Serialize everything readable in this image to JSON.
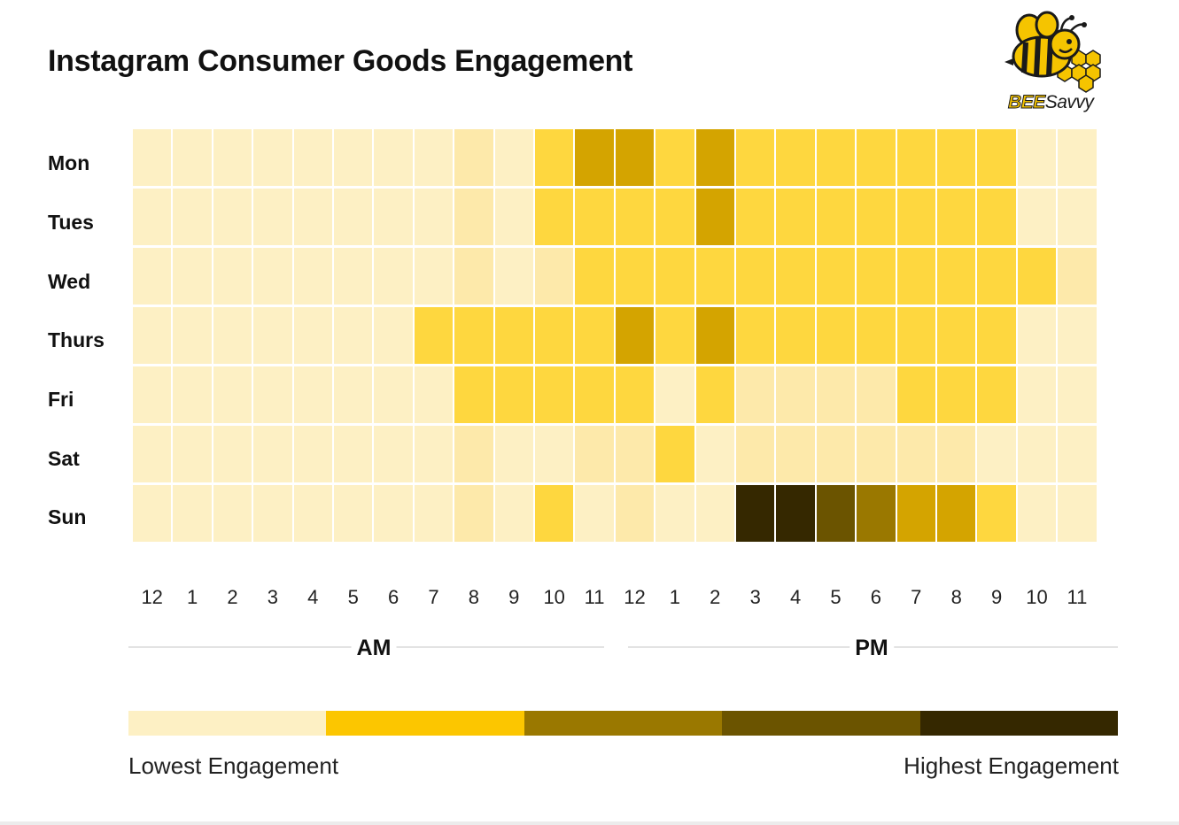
{
  "title": "Instagram Consumer Goods Engagement",
  "logo": {
    "brand_bold": "BEE",
    "brand_rest": "Savvy"
  },
  "chart_data": {
    "type": "heatmap",
    "title": "Instagram Consumer Goods Engagement",
    "rows": [
      "Mon",
      "Tues",
      "Wed",
      "Thurs",
      "Fri",
      "Sat",
      "Sun"
    ],
    "columns": [
      "12",
      "1",
      "2",
      "3",
      "4",
      "5",
      "6",
      "7",
      "8",
      "9",
      "10",
      "11",
      "12",
      "1",
      "2",
      "3",
      "4",
      "5",
      "6",
      "7",
      "8",
      "9",
      "10",
      "11"
    ],
    "periods": [
      {
        "label": "AM",
        "start_column": 0,
        "end_column": 11
      },
      {
        "label": "PM",
        "start_column": 12,
        "end_column": 23
      }
    ],
    "scale": "engagement level 0 (lowest) to 6 (highest)",
    "level_colors": [
      "#fdf0c4",
      "#fde9aa",
      "#fed73f",
      "#d4a400",
      "#9a7800",
      "#6b5400",
      "#352800"
    ],
    "values": [
      [
        0,
        0,
        0,
        0,
        0,
        0,
        0,
        0,
        1,
        0,
        2,
        3,
        3,
        2,
        3,
        2,
        2,
        2,
        2,
        2,
        2,
        2,
        0,
        0
      ],
      [
        0,
        0,
        0,
        0,
        0,
        0,
        0,
        0,
        1,
        0,
        2,
        2,
        2,
        2,
        3,
        2,
        2,
        2,
        2,
        2,
        2,
        2,
        0,
        0
      ],
      [
        0,
        0,
        0,
        0,
        0,
        0,
        0,
        0,
        1,
        0,
        1,
        2,
        2,
        2,
        2,
        2,
        2,
        2,
        2,
        2,
        2,
        2,
        2,
        1
      ],
      [
        0,
        0,
        0,
        0,
        0,
        0,
        0,
        2,
        2,
        2,
        2,
        2,
        3,
        2,
        3,
        2,
        2,
        2,
        2,
        2,
        2,
        2,
        0,
        0
      ],
      [
        0,
        0,
        0,
        0,
        0,
        0,
        0,
        0,
        2,
        2,
        2,
        2,
        2,
        0,
        2,
        1,
        1,
        1,
        1,
        2,
        2,
        2,
        0,
        0
      ],
      [
        0,
        0,
        0,
        0,
        0,
        0,
        0,
        0,
        1,
        0,
        0,
        1,
        1,
        2,
        0,
        1,
        1,
        1,
        1,
        1,
        1,
        0,
        0,
        0
      ],
      [
        0,
        0,
        0,
        0,
        0,
        0,
        0,
        0,
        1,
        0,
        2,
        0,
        1,
        0,
        0,
        6,
        6,
        5,
        4,
        3,
        3,
        2,
        0,
        0
      ]
    ]
  },
  "legend": {
    "low_label": "Lowest Engagement",
    "high_label": "Highest Engagement",
    "colors": [
      "#fdf0c4",
      "#fcc600",
      "#9a7800",
      "#6b5400",
      "#352800"
    ]
  }
}
